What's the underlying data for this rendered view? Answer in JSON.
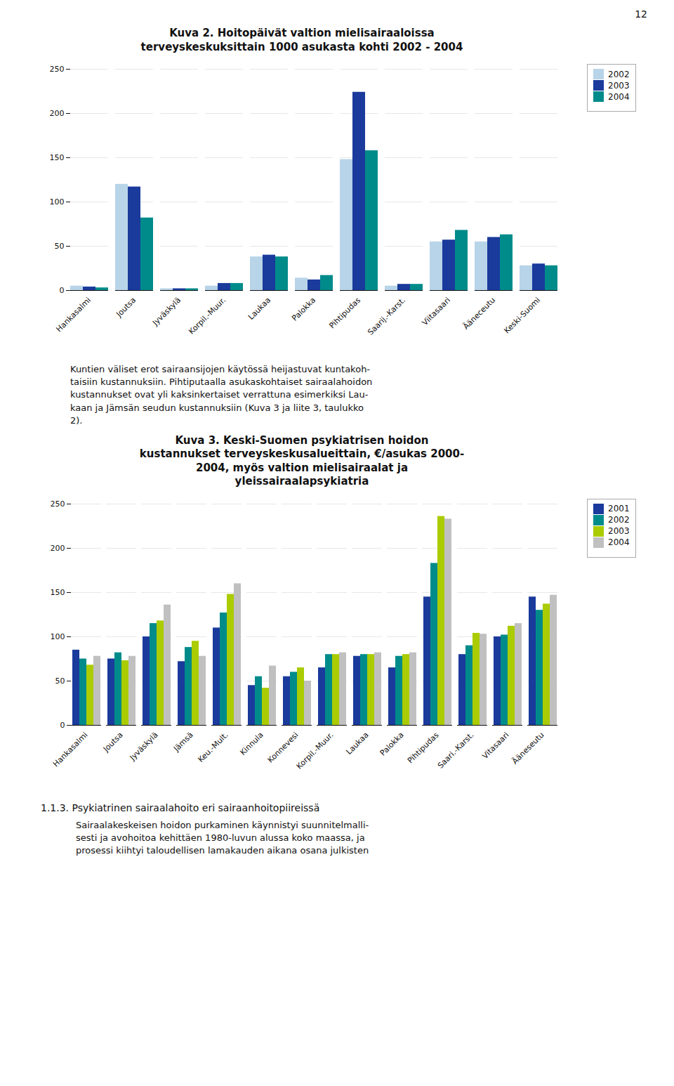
{
  "page_number": "12",
  "chart_data": [
    {
      "type": "bar",
      "title": "Kuva 2. Hoitopäivät valtion mielisairaaloissa\nterveyskeskuksittain 1000 asukasta kohti 2002 - 2004",
      "categories": [
        "Hankasalmi",
        "Joutsa",
        "Jyväskylä",
        "Korpil.-Muur.",
        "Laukaa",
        "Palokka",
        "Pihtipudas",
        "Saarij.-Karst.",
        "Viitasaari",
        "Äänесeutu",
        "Keski-Suomi"
      ],
      "series": [
        {
          "name": "2002",
          "color": "#b8d4e8",
          "values": [
            5,
            120,
            2,
            5,
            38,
            14,
            148,
            5,
            55,
            55,
            28
          ]
        },
        {
          "name": "2003",
          "color": "#1a3a9c",
          "values": [
            4,
            117,
            2,
            8,
            40,
            12,
            224,
            7,
            57,
            60,
            30
          ]
        },
        {
          "name": "2004",
          "color": "#008b8b",
          "values": [
            3,
            82,
            2,
            8,
            38,
            17,
            158,
            7,
            68,
            63,
            28
          ]
        }
      ],
      "ylim": [
        0,
        250
      ],
      "yticks": [
        0,
        50,
        100,
        150,
        200,
        250
      ],
      "grid": true,
      "legend": "upper right"
    },
    {
      "type": "bar",
      "title": "Kuva 3. Keski-Suomen psykiatrisen hoidon\nkustannukset terveyskeskusalueittain, €/asukas 2000-\n2004, myös valtion mielisairaalat ja\nyleissairaalapsykiatria",
      "categories": [
        "Hankasalmi",
        "Joutsa",
        "Jyväskylä",
        "Jämsä",
        "Keu.-Mult.",
        "Kinnula",
        "Konnevesi",
        "Korpil.-Muur.",
        "Laukaa",
        "Palokka",
        "Pihtipudas",
        "Saari.-Karst.",
        "Vitasaari",
        "Äänеseutu"
      ],
      "series": [
        {
          "name": "2001",
          "color": "#1a3a9c",
          "values": [
            85,
            75,
            100,
            72,
            110,
            45,
            55,
            65,
            78,
            65,
            145,
            80,
            100,
            145
          ]
        },
        {
          "name": "2002",
          "color": "#008b8b",
          "values": [
            75,
            82,
            115,
            88,
            127,
            55,
            60,
            80,
            80,
            78,
            183,
            90,
            102,
            130
          ]
        },
        {
          "name": "2003",
          "color": "#aacc00",
          "values": [
            68,
            73,
            118,
            95,
            148,
            42,
            65,
            80,
            80,
            80,
            236,
            104,
            112,
            137
          ]
        },
        {
          "name": "2004",
          "color": "#c0c0c0",
          "values": [
            78,
            78,
            136,
            78,
            160,
            67,
            50,
            82,
            82,
            82,
            233,
            103,
            115,
            147
          ]
        }
      ],
      "ylim": [
        0,
        250
      ],
      "yticks": [
        0,
        50,
        100,
        150,
        200,
        250
      ],
      "grid": true,
      "legend": "upper right"
    }
  ],
  "text_block": [
    "Kuntien väliset erot sairaansijojen käytössä heijastuvat kuntakoh-",
    "taisiin kustannuksiin. Pihtiputaalla asukaskohtaiset sairaalahoidon",
    "kustannukset ovat yli kaksinkertaiset verrattuna esimerkiksi Lau-",
    "kaan ja Jämsän seudun kustannuksiin (Kuva 3 ja liite 3, taulukko",
    "2)."
  ],
  "footer_heading": "1.1.3. Psykiatrinen sairaalahoito eri sairaanhoitopiireissä",
  "footer_lines": [
    "Sairaalakeskeisen hoidon purkaminen käynnistyi suunnitelmalli-",
    "sesti ja avohoitoa kehittäen 1980-luvun alussa koko maassa, ja",
    "prosessi kiihtyi taloudellisen lamakauden aikana osana julkisten"
  ]
}
